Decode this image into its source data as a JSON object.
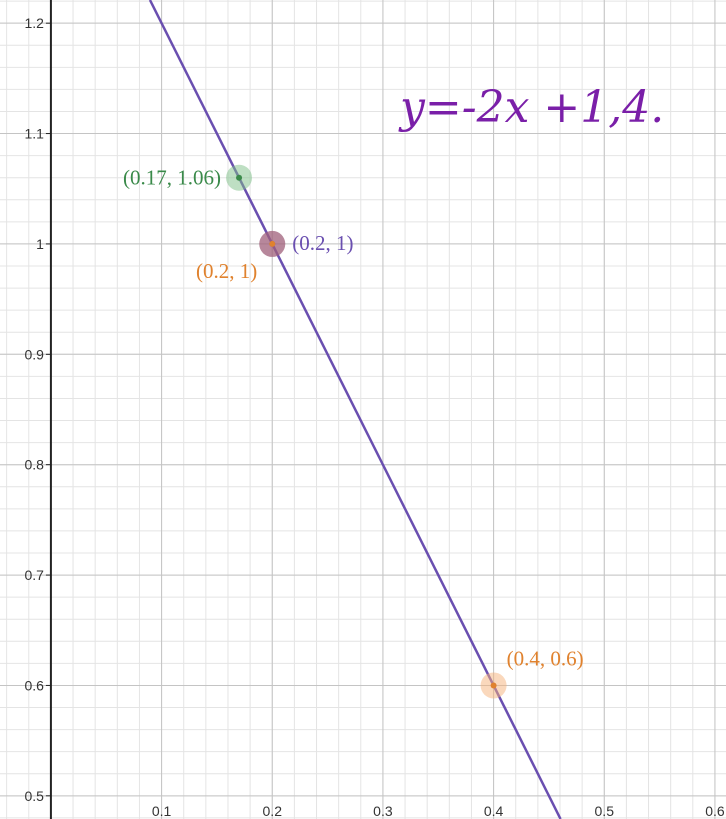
{
  "chart_data": {
    "type": "line",
    "xlim": [
      -0.046,
      0.61
    ],
    "ylim": [
      0.479,
      1.221
    ],
    "grid": true,
    "x_ticks": [
      {
        "value": 0.1,
        "label": "0.1"
      },
      {
        "value": 0.2,
        "label": "0.2"
      },
      {
        "value": 0.3,
        "label": "0.3"
      },
      {
        "value": 0.4,
        "label": "0.4"
      },
      {
        "value": 0.5,
        "label": "0.5"
      },
      {
        "value": 0.6,
        "label": "0.6"
      }
    ],
    "y_ticks": [
      {
        "value": 0.5,
        "label": "0.5"
      },
      {
        "value": 0.6,
        "label": "0.6"
      },
      {
        "value": 0.7,
        "label": "0.7"
      },
      {
        "value": 0.8,
        "label": "0.8"
      },
      {
        "value": 0.9,
        "label": "0.9"
      },
      {
        "value": 1.0,
        "label": "1"
      },
      {
        "value": 1.1,
        "label": "1.1"
      },
      {
        "value": 1.2,
        "label": "1.2"
      }
    ],
    "line": {
      "slope": -2,
      "intercept": 1.4,
      "color": "#6a4fb0"
    },
    "points": [
      {
        "x": 0.17,
        "y": 1.06,
        "label": "(0.17, 1.06)",
        "color": "#3a8a4a",
        "halo": "#7dbf88",
        "label_side": "left"
      },
      {
        "x": 0.2,
        "y": 1.0,
        "label": "(0.2, 1)",
        "color": "#6a4fb0",
        "halo": "#a0607a",
        "label_side": "right"
      },
      {
        "x": 0.2,
        "y": 1.0,
        "label": "(0.2, 1)",
        "color": "#e0822e",
        "halo": "#a0607a",
        "label_side": "below-left"
      },
      {
        "x": 0.4,
        "y": 0.6,
        "label": "(0.4, 0.6)",
        "color": "#e0822e",
        "halo": "#f5b27a",
        "label_side": "above-right"
      }
    ],
    "annotation": {
      "text": "y=-2x +1,4.",
      "color": "#7a1fa8"
    }
  }
}
